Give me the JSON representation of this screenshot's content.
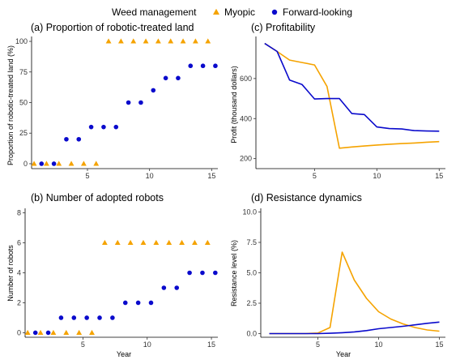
{
  "legend": {
    "title": "Weed management",
    "items": [
      {
        "label": "Myopic",
        "color": "#F5A300",
        "shape": "triangle"
      },
      {
        "label": "Forward-looking",
        "color": "#0A0ACC",
        "shape": "circle"
      }
    ]
  },
  "chart_data": [
    {
      "id": "a",
      "type": "scatter",
      "title": "(a) Proportion of robotic-treated land",
      "xlabel": "",
      "ylabel": "Proportion of robotic-treated land (%)",
      "xlim": [
        0.5,
        15.5
      ],
      "ylim": [
        -4,
        104
      ],
      "xticks": [
        5,
        10,
        15
      ],
      "yticks": [
        0,
        25,
        50,
        75,
        100
      ],
      "series": [
        {
          "name": "Myopic",
          "color": "#F5A300",
          "marker": "triangle",
          "offset": -0.3,
          "x": [
            1,
            2,
            3,
            4,
            5,
            6,
            7,
            8,
            9,
            10,
            11,
            12,
            13,
            14,
            15
          ],
          "y": [
            0,
            0,
            0,
            0,
            0,
            0,
            100,
            100,
            100,
            100,
            100,
            100,
            100,
            100,
            100
          ]
        },
        {
          "name": "Forward-looking",
          "color": "#0A0ACC",
          "marker": "circle",
          "offset": 0.3,
          "x": [
            1,
            2,
            3,
            4,
            5,
            6,
            7,
            8,
            9,
            10,
            11,
            12,
            13,
            14,
            15
          ],
          "y": [
            0,
            0,
            20,
            20,
            30,
            30,
            30,
            50,
            50,
            60,
            70,
            70,
            80,
            80,
            80
          ]
        }
      ]
    },
    {
      "id": "b",
      "type": "scatter",
      "title": "(b) Number of adopted robots",
      "xlabel": "Year",
      "ylabel": "Number of robots",
      "xlim": [
        0.5,
        15.5
      ],
      "ylim": [
        -0.3,
        8.3
      ],
      "xticks": [
        5,
        10,
        15
      ],
      "yticks": [
        0,
        2,
        4,
        6,
        8
      ],
      "series": [
        {
          "name": "Myopic",
          "color": "#F5A300",
          "marker": "triangle",
          "offset": -0.3,
          "x": [
            1,
            2,
            3,
            4,
            5,
            6,
            7,
            8,
            9,
            10,
            11,
            12,
            13,
            14,
            15
          ],
          "y": [
            0,
            0,
            0,
            0,
            0,
            0,
            6,
            6,
            6,
            6,
            6,
            6,
            6,
            6,
            6
          ]
        },
        {
          "name": "Forward-looking",
          "color": "#0A0ACC",
          "marker": "circle",
          "offset": 0.3,
          "x": [
            1,
            2,
            3,
            4,
            5,
            6,
            7,
            8,
            9,
            10,
            11,
            12,
            13,
            14,
            15
          ],
          "y": [
            0,
            0,
            1,
            1,
            1,
            1,
            1,
            2,
            2,
            2,
            3,
            3,
            4,
            4,
            4
          ]
        }
      ]
    },
    {
      "id": "c",
      "type": "line",
      "title": "(c) Profitability",
      "xlabel": "",
      "ylabel": "Profit (thousand dollars)",
      "xlim": [
        0.3,
        15.5
      ],
      "ylim": [
        150,
        810
      ],
      "xticks": [
        5,
        10,
        15
      ],
      "yticks": [
        200,
        400,
        600
      ],
      "series": [
        {
          "name": "Myopic",
          "color": "#F5A300",
          "x": [
            1,
            2,
            3,
            4,
            5,
            6,
            7,
            8,
            9,
            10,
            11,
            12,
            13,
            14,
            15
          ],
          "y": [
            775,
            735,
            692,
            680,
            668,
            560,
            252,
            258,
            263,
            268,
            272,
            275,
            278,
            282,
            285
          ]
        },
        {
          "name": "Forward-looking",
          "color": "#0A0ACC",
          "x": [
            1,
            2,
            3,
            4,
            5,
            6,
            7,
            8,
            9,
            10,
            11,
            12,
            13,
            14,
            15
          ],
          "y": [
            775,
            735,
            592,
            570,
            498,
            500,
            500,
            425,
            420,
            358,
            350,
            348,
            340,
            338,
            337
          ]
        }
      ]
    },
    {
      "id": "d",
      "type": "line",
      "title": "(d) Resistance dynamics",
      "xlabel": "Year",
      "ylabel": "Resistance level (%)",
      "xlim": [
        0.3,
        15.5
      ],
      "ylim": [
        -0.3,
        10.3
      ],
      "xticks": [
        5,
        10,
        15
      ],
      "yticks": [
        "0.0",
        "2.5",
        "5.0",
        "7.5",
        "10.0"
      ],
      "series": [
        {
          "name": "Myopic",
          "color": "#F5A300",
          "x": [
            1,
            2,
            3,
            4,
            5,
            6,
            7,
            8,
            9,
            10,
            11,
            12,
            13,
            14,
            15
          ],
          "y": [
            0,
            0,
            0,
            0,
            0.05,
            0.5,
            6.7,
            4.4,
            2.9,
            1.8,
            1.2,
            0.8,
            0.5,
            0.3,
            0.2
          ]
        },
        {
          "name": "Forward-looking",
          "color": "#0A0ACC",
          "x": [
            1,
            2,
            3,
            4,
            5,
            6,
            7,
            8,
            9,
            10,
            11,
            12,
            13,
            14,
            15
          ],
          "y": [
            0,
            0,
            0,
            0,
            0,
            0.03,
            0.07,
            0.14,
            0.25,
            0.4,
            0.5,
            0.6,
            0.72,
            0.85,
            0.95
          ]
        }
      ]
    }
  ]
}
